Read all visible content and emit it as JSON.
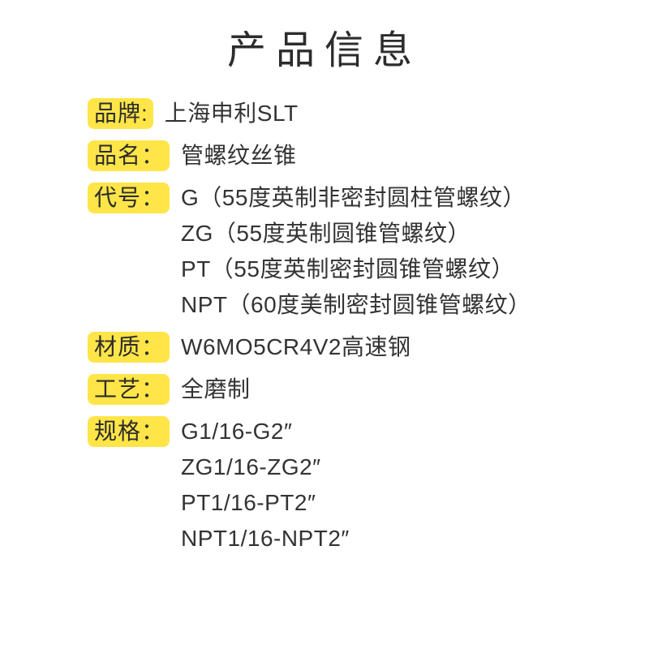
{
  "title": "产品信息",
  "colors": {
    "label_bg": "#ffe548",
    "text": "#2c2c2c",
    "value_text": "#333333",
    "background": "#ffffff"
  },
  "typography": {
    "title_fontsize": 48,
    "title_letter_spacing": 12,
    "label_fontsize": 28,
    "value_fontsize": 28,
    "line_height": 44,
    "label_border_radius": 8
  },
  "rows": [
    {
      "label": "品牌:",
      "values": [
        "上海申利SLT"
      ]
    },
    {
      "label": "品名：",
      "values": [
        "管螺纹丝锥"
      ]
    },
    {
      "label": "代号：",
      "values": [
        "G（55度英制非密封圆柱管螺纹）",
        "ZG（55度英制圆锥管螺纹）",
        "PT（55度英制密封圆锥管螺纹）",
        "NPT（60度美制密封圆锥管螺纹）"
      ]
    },
    {
      "label": "材质：",
      "values": [
        "W6MO5CR4V2高速钢"
      ]
    },
    {
      "label": "工艺：",
      "values": [
        "全磨制"
      ]
    },
    {
      "label": "规格：",
      "values": [
        "G1/16-G2″",
        "ZG1/16-ZG2″",
        "PT1/16-PT2″",
        "NPT1/16-NPT2″"
      ]
    }
  ]
}
